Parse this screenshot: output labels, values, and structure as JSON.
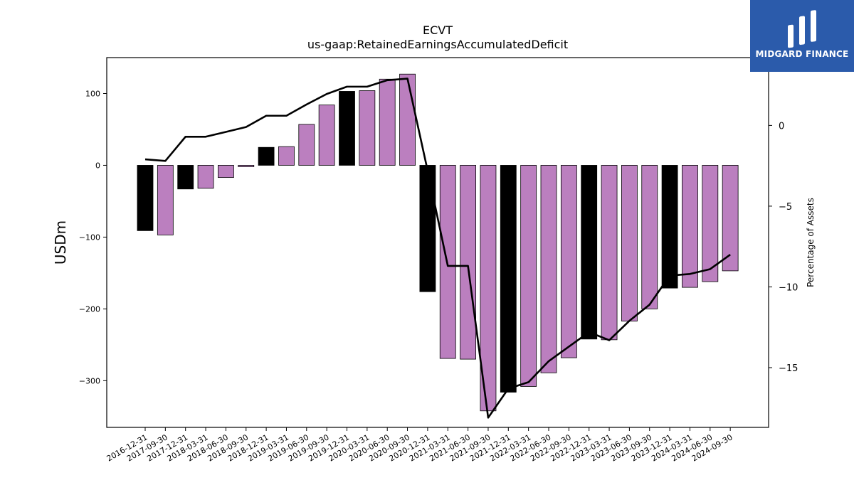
{
  "chart_data": {
    "type": "bar",
    "title": "ECVT",
    "subtitle": "us-gaap:RetainedEarningsAccumulatedDeficit",
    "ylabel": "USDm",
    "y2label": "Percentage of Assets",
    "ylim": [
      -365,
      150
    ],
    "y2lim": [
      -18.7,
      4.2
    ],
    "yticks": [
      100,
      0,
      -100,
      -200,
      -300
    ],
    "y2ticks": [
      0,
      -5,
      -10,
      -15
    ],
    "categories": [
      "2016-12-31",
      "2017-09-30",
      "2017-12-31",
      "2018-03-31",
      "2018-06-30",
      "2018-09-30",
      "2018-12-31",
      "2019-03-31",
      "2019-06-30",
      "2019-09-30",
      "2019-12-31",
      "2020-03-31",
      "2020-06-30",
      "2020-09-30",
      "2020-12-31",
      "2021-03-31",
      "2021-06-30",
      "2021-09-30",
      "2021-12-31",
      "2022-03-31",
      "2022-06-30",
      "2022-09-30",
      "2022-12-31",
      "2023-03-31",
      "2023-06-30",
      "2023-09-30",
      "2023-12-31",
      "2024-03-31",
      "2024-06-30",
      "2024-09-30"
    ],
    "series": [
      {
        "type": "bar",
        "values": [
          -91,
          -97,
          -33,
          -32,
          -17,
          -2,
          25,
          26,
          57,
          84,
          103,
          104,
          120,
          127,
          -176,
          -269,
          -270,
          -342,
          -316,
          -308,
          -289,
          -268,
          -242,
          -243,
          -217,
          -200,
          -171,
          -170,
          -162,
          -147
        ]
      },
      {
        "type": "line",
        "axis": "right",
        "color": "#000000",
        "values": [
          -2.1,
          -2.2,
          -0.7,
          -0.7,
          -0.4,
          -0.1,
          0.6,
          0.6,
          1.3,
          1.95,
          2.4,
          2.4,
          2.8,
          2.9,
          -2.8,
          -8.7,
          -8.7,
          -18.1,
          -16.3,
          -15.9,
          -14.6,
          -13.7,
          -12.8,
          -13.3,
          -12.1,
          -11.1,
          -9.3,
          -9.2,
          -8.9,
          -8.0
        ]
      }
    ],
    "bar_colors": {
      "highlight": "#000000",
      "default": "#bb7fbf",
      "edge": "#000000"
    },
    "highlight_categories": [
      "2016-12-31",
      "2017-12-31",
      "2018-12-31",
      "2019-12-31",
      "2020-12-31",
      "2021-12-31",
      "2022-12-31",
      "2023-12-31"
    ]
  },
  "logo": {
    "text": "MIDGARD FINANCE",
    "background": "#2b5bab"
  }
}
